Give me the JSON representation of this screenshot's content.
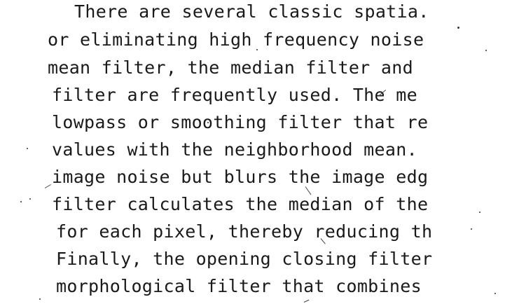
{
  "document": {
    "lines": [
      "There are several classic spatia.",
      "or eliminating high frequency noise",
      "mean filter, the median filter and",
      "filter are frequently used. The me",
      "lowpass or smoothing filter that re",
      "values with the neighborhood mean.",
      "image noise but blurs the image edg",
      "filter calculates the median of the",
      "for each pixel, thereby reducing th",
      "Finally, the opening closing filter",
      "morphological filter that combines"
    ]
  }
}
